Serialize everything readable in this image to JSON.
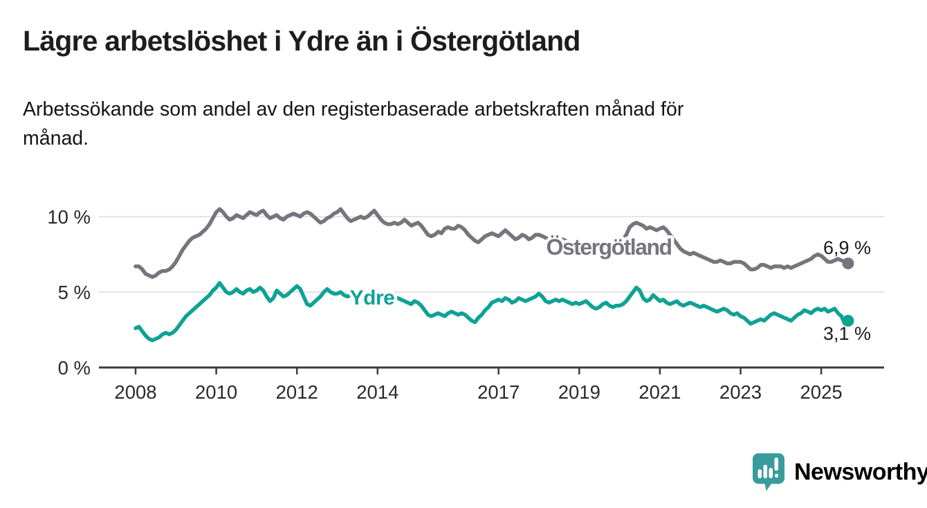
{
  "title": "Lägre arbetslöshet i Ydre än i Östergötland",
  "subtitle_lines": [
    "Arbetssökande som andel av den registerbaserade arbetskraften månad för",
    "månad."
  ],
  "chart_data": {
    "type": "line",
    "unit": "%",
    "x_start": "2008-01",
    "x_end": "2025-09",
    "x_interval": "monthly",
    "ylim": [
      0,
      11
    ],
    "grid": "horizontal",
    "legend_position": "inline-labels",
    "y_ticks": [
      {
        "value": 0,
        "label": "0 %"
      },
      {
        "value": 5,
        "label": "5 %"
      },
      {
        "value": 10,
        "label": "10 %"
      }
    ],
    "x_ticks": [
      {
        "year": 2008,
        "label": "2008"
      },
      {
        "year": 2010,
        "label": "2010"
      },
      {
        "year": 2012,
        "label": "2012"
      },
      {
        "year": 2014,
        "label": "2014"
      },
      {
        "year": 2017,
        "label": "2017"
      },
      {
        "year": 2019,
        "label": "2019"
      },
      {
        "year": 2021,
        "label": "2021"
      },
      {
        "year": 2023,
        "label": "2023"
      },
      {
        "year": 2025,
        "label": "2025"
      }
    ],
    "series": [
      {
        "name": "Östergötland",
        "color": "#76757d",
        "end_label": "6,9 %",
        "last_value": 6.9,
        "values": [
          6.7,
          6.7,
          6.5,
          6.2,
          6.1,
          6.0,
          6.1,
          6.3,
          6.4,
          6.4,
          6.5,
          6.7,
          7.0,
          7.4,
          7.8,
          8.1,
          8.4,
          8.6,
          8.7,
          8.8,
          9.0,
          9.2,
          9.5,
          9.9,
          10.3,
          10.5,
          10.3,
          10.0,
          9.8,
          9.9,
          10.1,
          10.0,
          9.9,
          10.1,
          10.3,
          10.2,
          10.1,
          10.3,
          10.4,
          10.1,
          9.9,
          10.0,
          10.1,
          9.9,
          9.8,
          10.0,
          10.1,
          10.2,
          10.1,
          10.0,
          10.2,
          10.3,
          10.2,
          10.0,
          9.8,
          9.6,
          9.7,
          9.9,
          10.0,
          10.2,
          10.3,
          10.5,
          10.2,
          9.9,
          9.7,
          9.8,
          9.9,
          10.0,
          9.9,
          10.0,
          10.2,
          10.4,
          10.1,
          9.8,
          9.6,
          9.5,
          9.5,
          9.6,
          9.5,
          9.6,
          9.8,
          9.6,
          9.4,
          9.5,
          9.6,
          9.4,
          9.1,
          8.8,
          8.7,
          8.8,
          9.0,
          8.9,
          9.2,
          9.3,
          9.2,
          9.2,
          9.4,
          9.3,
          9.1,
          8.8,
          8.6,
          8.4,
          8.3,
          8.5,
          8.7,
          8.8,
          8.9,
          8.8,
          8.7,
          8.9,
          9.1,
          8.9,
          8.7,
          8.5,
          8.6,
          8.8,
          8.7,
          8.5,
          8.6,
          8.8,
          8.8,
          8.7,
          8.6,
          8.5,
          8.4,
          8.3,
          8.4,
          8.5,
          8.4,
          8.3,
          8.2,
          8.3,
          8.3,
          8.2,
          8.1,
          8.0,
          7.9,
          8.0,
          8.1,
          8.1,
          8.0,
          8.1,
          8.2,
          8.3,
          8.4,
          8.5,
          8.8,
          9.3,
          9.5,
          9.6,
          9.5,
          9.4,
          9.2,
          9.3,
          9.2,
          9.1,
          9.2,
          9.3,
          9.1,
          8.8,
          8.5,
          8.2,
          7.9,
          7.7,
          7.6,
          7.5,
          7.6,
          7.5,
          7.4,
          7.3,
          7.2,
          7.1,
          7.0,
          7.0,
          7.1,
          7.0,
          6.9,
          6.9,
          7.0,
          7.0,
          7.0,
          6.9,
          6.7,
          6.5,
          6.5,
          6.6,
          6.8,
          6.8,
          6.7,
          6.6,
          6.7,
          6.7,
          6.7,
          6.6,
          6.7,
          6.6,
          6.7,
          6.8,
          6.9,
          7.0,
          7.1,
          7.2,
          7.4,
          7.5,
          7.4,
          7.2,
          7.0,
          7.0,
          7.1,
          7.2,
          7.1,
          7.0,
          6.9
        ]
      },
      {
        "name": "Ydre",
        "color": "#0fa294",
        "end_label": "3,1 %",
        "last_value": 3.1,
        "values": [
          2.6,
          2.7,
          2.4,
          2.1,
          1.9,
          1.8,
          1.9,
          2.0,
          2.2,
          2.3,
          2.2,
          2.3,
          2.5,
          2.8,
          3.1,
          3.4,
          3.6,
          3.8,
          4.0,
          4.2,
          4.4,
          4.6,
          4.8,
          5.1,
          5.3,
          5.6,
          5.3,
          5.0,
          4.9,
          5.0,
          5.2,
          5.0,
          4.9,
          5.1,
          5.2,
          5.0,
          5.1,
          5.3,
          5.1,
          4.7,
          4.4,
          4.6,
          5.1,
          4.9,
          4.7,
          4.8,
          5.0,
          5.2,
          5.4,
          5.2,
          4.7,
          4.2,
          4.1,
          4.3,
          4.5,
          4.7,
          5.0,
          5.2,
          5.0,
          4.9,
          4.9,
          5.0,
          4.8,
          4.7,
          4.8,
          4.7,
          4.6,
          4.5,
          4.6,
          4.5,
          4.4,
          4.5,
          4.6,
          4.5,
          4.4,
          4.5,
          4.4,
          4.5,
          4.6,
          4.5,
          4.4,
          4.3,
          4.2,
          4.4,
          4.3,
          4.1,
          3.8,
          3.5,
          3.4,
          3.5,
          3.6,
          3.5,
          3.4,
          3.6,
          3.7,
          3.6,
          3.5,
          3.6,
          3.5,
          3.3,
          3.1,
          3.0,
          3.3,
          3.5,
          3.8,
          4.0,
          4.3,
          4.4,
          4.5,
          4.4,
          4.6,
          4.5,
          4.3,
          4.4,
          4.6,
          4.5,
          4.4,
          4.5,
          4.6,
          4.7,
          4.9,
          4.7,
          4.4,
          4.3,
          4.4,
          4.5,
          4.4,
          4.5,
          4.4,
          4.3,
          4.2,
          4.3,
          4.2,
          4.3,
          4.4,
          4.2,
          4.0,
          3.9,
          4.0,
          4.2,
          4.3,
          4.1,
          4.0,
          4.1,
          4.1,
          4.2,
          4.4,
          4.7,
          5.0,
          5.3,
          5.1,
          4.6,
          4.4,
          4.5,
          4.8,
          4.6,
          4.4,
          4.5,
          4.3,
          4.2,
          4.3,
          4.4,
          4.2,
          4.1,
          4.2,
          4.3,
          4.2,
          4.1,
          4.0,
          4.1,
          4.0,
          3.9,
          3.8,
          3.7,
          3.8,
          3.9,
          3.8,
          3.6,
          3.5,
          3.6,
          3.4,
          3.3,
          3.1,
          2.9,
          3.0,
          3.1,
          3.2,
          3.1,
          3.3,
          3.5,
          3.6,
          3.5,
          3.4,
          3.3,
          3.2,
          3.1,
          3.3,
          3.5,
          3.6,
          3.8,
          3.7,
          3.6,
          3.8,
          3.9,
          3.8,
          3.9,
          3.7,
          3.8,
          3.9,
          3.6,
          3.4,
          2.9,
          3.1
        ]
      }
    ]
  },
  "branding": {
    "logo_text": "Newsworthy",
    "logo_color": "#3a9b9c"
  }
}
